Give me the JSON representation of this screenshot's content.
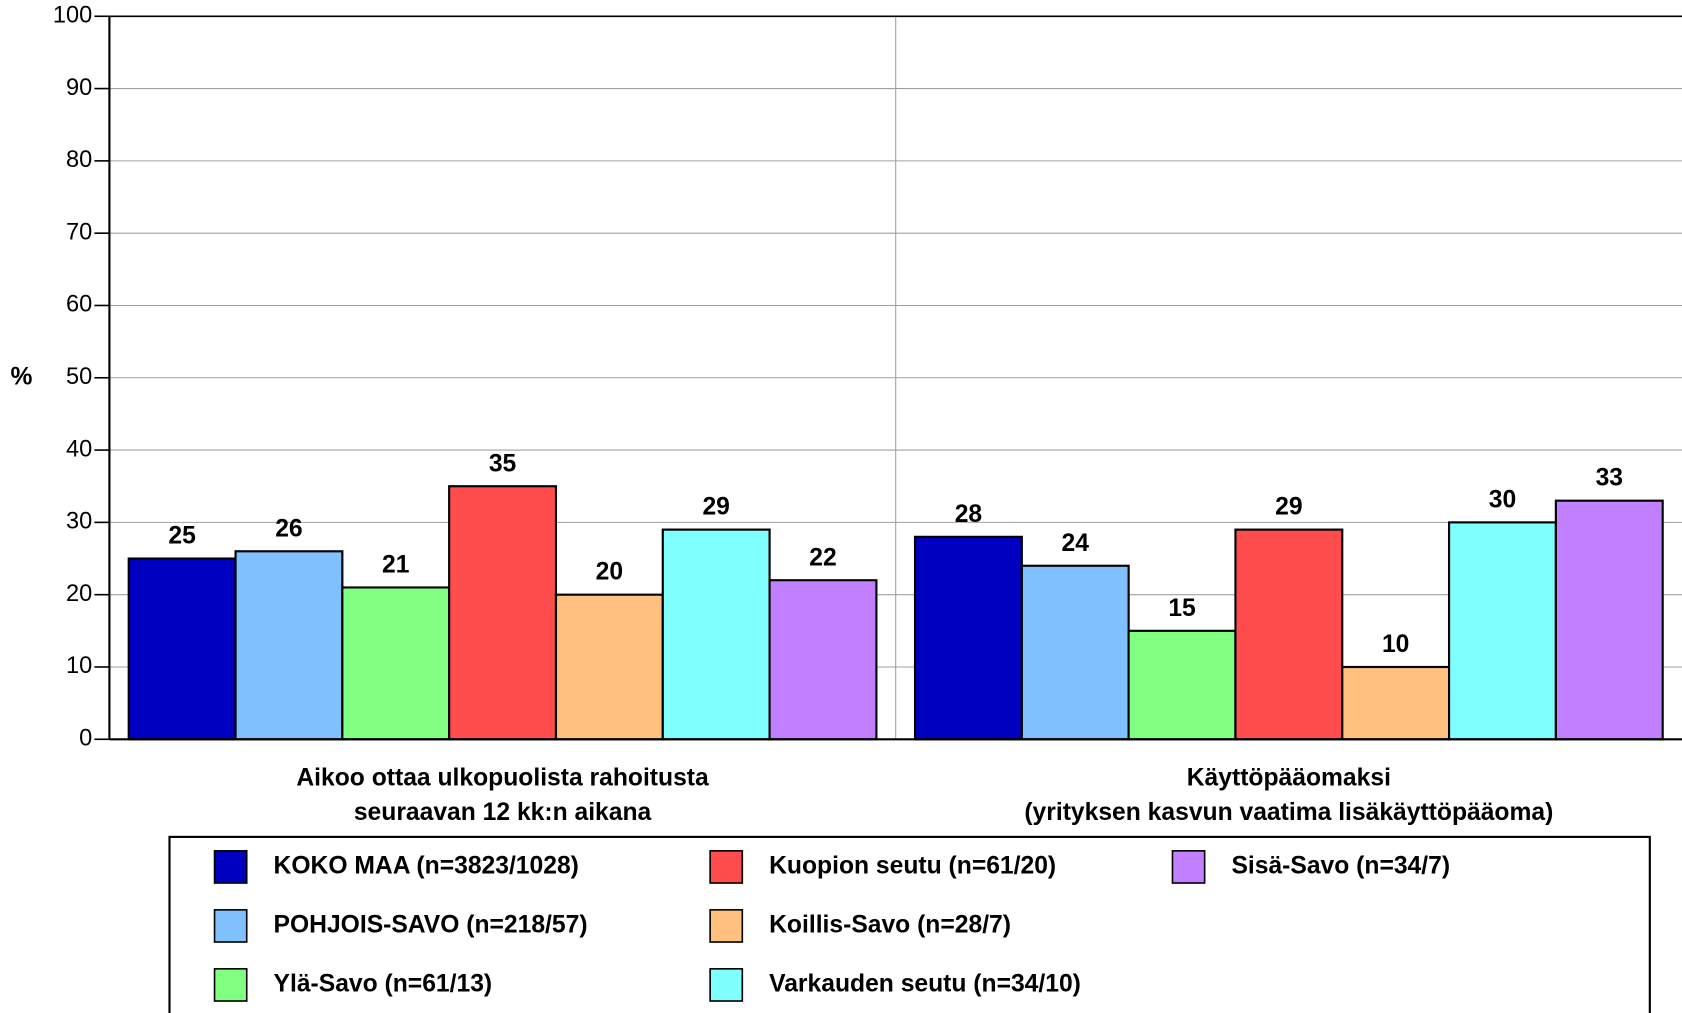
{
  "chart_data": {
    "type": "bar",
    "ylabel": "%",
    "categories": [
      [
        "Aikoo ottaa ulkopuolista rahoitusta",
        "seuraavan 12 kk:n aikana"
      ],
      [
        "Käyttöpääomaksi",
        "(yrityksen kasvun vaatima lisäkäyttöpääoma)"
      ]
    ],
    "series": [
      {
        "name": "KOKO MAA (n=3823/1028)",
        "color": "#0000c0",
        "values": [
          25,
          28
        ]
      },
      {
        "name": "POHJOIS-SAVO (n=218/57)",
        "color": "#80c0ff",
        "values": [
          26,
          24
        ]
      },
      {
        "name": "Ylä-Savo (n=61/13)",
        "color": "#80ff80",
        "values": [
          21,
          15
        ]
      },
      {
        "name": "Kuopion seutu (n=61/20)",
        "color": "#ff4c4c",
        "values": [
          35,
          29
        ]
      },
      {
        "name": "Koillis-Savo (n=28/7)",
        "color": "#ffc080",
        "values": [
          20,
          10
        ]
      },
      {
        "name": "Varkauden seutu (n=34/10)",
        "color": "#80ffff",
        "values": [
          29,
          30
        ]
      },
      {
        "name": "Sisä-Savo (n=34/7)",
        "color": "#c080ff",
        "values": [
          22,
          33
        ]
      }
    ],
    "ylim": [
      0,
      100
    ],
    "yticks": [
      0,
      10,
      20,
      30,
      40,
      50,
      60,
      70,
      80,
      90,
      100
    ],
    "grid": true
  }
}
